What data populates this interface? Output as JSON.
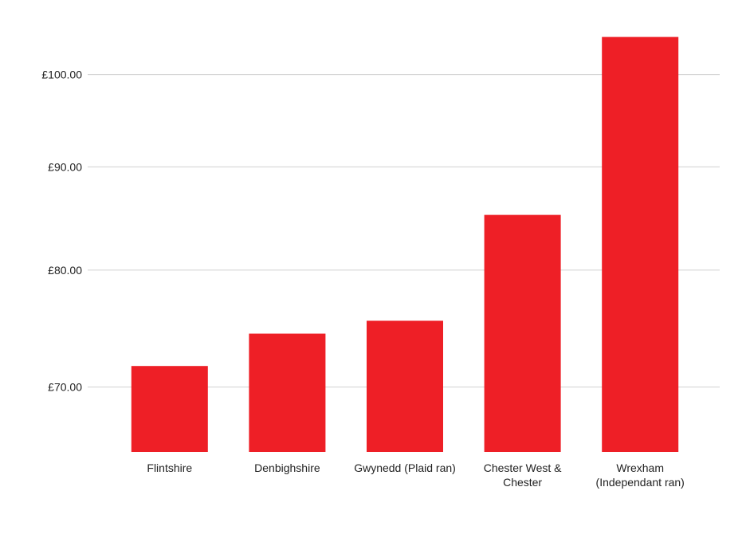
{
  "chart_data": {
    "type": "bar",
    "categories": [
      "Flintshire",
      "Denbighshire",
      "Gwynedd (Plaid ran)",
      "Chester West & Chester",
      "Wrexham (Independant ran)"
    ],
    "values": [
      71.7,
      74.4,
      75.5,
      85.2,
      104.4
    ],
    "color": "#ee1f26",
    "ylim": [
      65,
      105
    ],
    "yticks": [
      {
        "value": 70,
        "label": "£70.00"
      },
      {
        "value": 80,
        "label": "£80.00"
      },
      {
        "value": 90,
        "label": "£90.00"
      },
      {
        "value": 100,
        "label": "£100.00"
      }
    ],
    "log_scale": true,
    "grid": true
  }
}
